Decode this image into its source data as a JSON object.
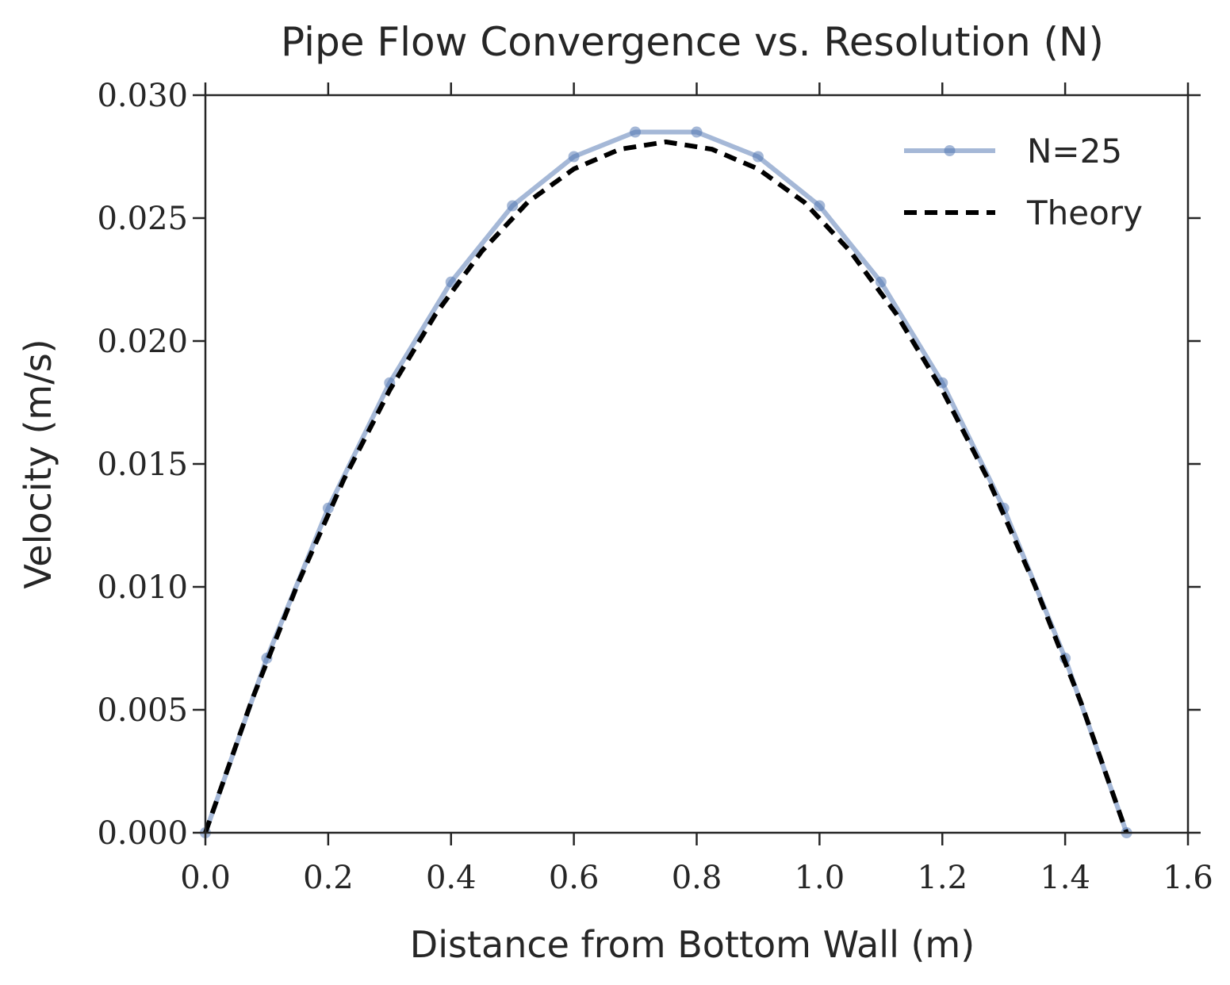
{
  "chart_data": {
    "type": "line",
    "title": "Pipe Flow Convergence vs. Resolution (N)",
    "xlabel": "Distance from Bottom Wall (m)",
    "ylabel": "Velocity (m/s)",
    "xlim": [
      0.0,
      1.6
    ],
    "ylim": [
      0.0,
      0.03
    ],
    "xticks": [
      "0.0",
      "0.2",
      "0.4",
      "0.6",
      "0.8",
      "1.0",
      "1.2",
      "1.4",
      "1.6"
    ],
    "yticks": [
      "0.000",
      "0.005",
      "0.010",
      "0.015",
      "0.020",
      "0.025",
      "0.030"
    ],
    "grid": false,
    "legend_position": "top-right",
    "series": [
      {
        "name": "N=25",
        "style": "solid-with-markers",
        "color": "#4c72b0",
        "x": [
          0.0,
          0.1,
          0.2,
          0.3,
          0.4,
          0.5,
          0.6,
          0.7,
          0.8,
          0.9,
          1.0,
          1.1,
          1.2,
          1.3,
          1.4,
          1.5
        ],
        "y": [
          0.0,
          0.0071,
          0.0132,
          0.0183,
          0.0224,
          0.0255,
          0.0275,
          0.0285,
          0.0285,
          0.0275,
          0.0255,
          0.0224,
          0.0183,
          0.0132,
          0.0071,
          0.0
        ]
      },
      {
        "name": "Theory",
        "style": "dashed",
        "color": "#000000",
        "x": [
          0.0,
          0.075,
          0.15,
          0.225,
          0.3,
          0.375,
          0.45,
          0.525,
          0.6,
          0.675,
          0.75,
          0.825,
          0.9,
          0.975,
          1.05,
          1.125,
          1.2,
          1.275,
          1.35,
          1.425,
          1.5
        ],
        "y": [
          0.0,
          0.00535,
          0.0101,
          0.01435,
          0.018,
          0.0211,
          0.02365,
          0.02565,
          0.027,
          0.0278,
          0.0281,
          0.0278,
          0.027,
          0.02565,
          0.02365,
          0.0211,
          0.018,
          0.01435,
          0.0101,
          0.00535,
          0.0
        ]
      }
    ]
  }
}
